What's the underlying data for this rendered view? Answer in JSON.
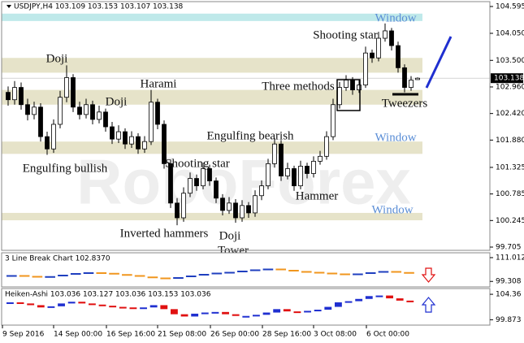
{
  "chart_data": {
    "type": "candlestick",
    "header": "USDJPY,H4 103.109 103.153 103.107 103.138",
    "watermark": "RoboForex",
    "ylim": [
      99.705,
      104.595
    ],
    "yticks": [
      104.595,
      {
        "value": 104.05,
        "label": "104.050"
      },
      {
        "value": 103.5,
        "label": "103.500"
      },
      {
        "value": 102.96,
        "label": "102.960"
      },
      {
        "value": 102.42,
        "label": "102.420"
      },
      {
        "value": 101.88,
        "label": "101.880"
      },
      101.325,
      100.785,
      100.245,
      99.705
    ],
    "current_price": 103.138,
    "open": [
      102.85,
      102.7,
      102.95,
      102.6,
      102.4,
      102.55,
      101.95,
      101.7,
      102.2,
      102.75,
      103.15,
      102.55,
      102.4,
      102.6,
      102.3,
      102.45,
      102.15,
      101.9,
      102.05,
      101.8,
      101.95,
      101.7,
      101.85,
      102.65,
      102.2,
      101.4,
      100.6,
      100.3,
      100.8,
      101.1,
      100.95,
      101.3,
      101.05,
      100.7,
      100.45,
      100.6,
      100.3,
      100.55,
      100.4,
      100.75,
      100.95,
      101.4,
      101.8,
      101.15,
      101.3,
      100.95,
      101.35,
      101.2,
      101.45,
      101.55,
      101.95,
      102.6,
      102.95,
      103.1,
      102.9,
      103.0,
      103.65,
      103.55,
      103.95,
      104.1,
      103.8,
      103.35,
      102.95,
      103.109
    ],
    "high": [
      102.97,
      103.08,
      103.05,
      102.72,
      102.66,
      102.63,
      102.05,
      102.3,
      102.88,
      103.4,
      103.22,
      102.66,
      102.72,
      102.68,
      102.58,
      102.52,
      102.25,
      102.18,
      102.12,
      102.06,
      102.02,
      101.96,
      102.9,
      102.72,
      102.28,
      101.48,
      100.7,
      100.92,
      101.22,
      101.18,
      101.42,
      101.38,
      101.12,
      100.78,
      100.72,
      100.68,
      100.66,
      100.62,
      100.86,
      101.06,
      101.5,
      101.92,
      101.88,
      101.42,
      101.36,
      101.46,
      101.42,
      101.55,
      101.66,
      102.06,
      102.72,
      103.06,
      103.2,
      103.16,
      103.1,
      103.78,
      103.72,
      104.08,
      104.25,
      104.16,
      103.88,
      103.42,
      103.18,
      103.153
    ],
    "low": [
      102.58,
      102.6,
      102.5,
      102.28,
      102.3,
      101.85,
      101.58,
      101.62,
      102.12,
      102.65,
      102.45,
      102.3,
      102.32,
      102.2,
      102.22,
      102.05,
      101.8,
      101.82,
      101.7,
      101.72,
      101.6,
      101.62,
      101.78,
      102.1,
      101.3,
      100.5,
      100.15,
      100.22,
      100.72,
      100.85,
      100.88,
      100.95,
      100.6,
      100.35,
      100.38,
      100.2,
      100.22,
      100.3,
      100.32,
      100.66,
      100.88,
      101.32,
      101.05,
      101.08,
      100.85,
      100.88,
      101.1,
      101.12,
      101.38,
      101.48,
      101.88,
      102.52,
      102.88,
      102.8,
      102.84,
      102.94,
      103.45,
      103.48,
      103.88,
      103.7,
      103.25,
      102.85,
      102.88,
      103.107
    ],
    "close": [
      102.7,
      102.95,
      102.6,
      102.4,
      102.55,
      101.95,
      101.7,
      102.2,
      102.75,
      103.15,
      102.55,
      102.4,
      102.6,
      102.3,
      102.45,
      102.15,
      101.9,
      102.05,
      101.8,
      101.95,
      101.7,
      101.85,
      102.65,
      102.2,
      101.4,
      100.6,
      100.3,
      100.8,
      101.1,
      100.95,
      101.3,
      101.05,
      100.7,
      100.45,
      100.6,
      100.3,
      100.55,
      100.4,
      100.75,
      100.95,
      101.4,
      101.8,
      101.15,
      101.3,
      100.95,
      101.35,
      101.2,
      101.45,
      101.55,
      101.95,
      102.6,
      102.95,
      103.1,
      102.9,
      103.0,
      103.65,
      103.55,
      103.95,
      104.1,
      103.8,
      103.35,
      102.95,
      103.1,
      103.138
    ],
    "zones": [
      {
        "from": 104.3,
        "to": 104.45,
        "color": "#bfe9ea"
      },
      {
        "from": 103.25,
        "to": 103.55,
        "color": "#e6e3c9"
      },
      {
        "from": 102.6,
        "to": 102.9,
        "color": "#e6e3c9"
      },
      {
        "from": 101.6,
        "to": 101.85,
        "color": "#e6e3c9"
      },
      {
        "from": 100.25,
        "to": 100.4,
        "color": "#e6e3c9"
      }
    ],
    "annotations": [
      "Doji",
      "Harami",
      "Doji",
      "Engulfing bullish",
      "Shooting star",
      "Inverted hammers",
      "Doji",
      "Tower",
      "Engulfing bearish",
      "Hammer",
      "Three methods",
      "Shooting star",
      "Tweezers",
      "Window",
      "Window",
      "Window"
    ],
    "x_labels": [
      "9 Sep 2016",
      "14 Sep 00:00",
      "16 Sep 16:00",
      "21 Sep 08:00",
      "26 Sep 00:00",
      "28 Sep 16:00",
      "3 Oct 08:00",
      "6 Oct 00:00"
    ],
    "line_break": {
      "label": "3 Line Break Chart 102.8370",
      "ylim": [
        98.2,
        111.8
      ],
      "yticks": [
        111.012,
        99.308
      ],
      "up_color": "#1f3fbf",
      "down_color": "#f0961e",
      "values": [
        102.0,
        101.6,
        101.2,
        101.5,
        102.2,
        103.0,
        103.4,
        103.1,
        102.5,
        102.0,
        101.3,
        100.8,
        100.6,
        101.0,
        101.8,
        102.6,
        103.2,
        103.6,
        104.2,
        104.8,
        105.2,
        104.6,
        104.0,
        103.6,
        103.2,
        102.8,
        102.4,
        102.8,
        103.4,
        104.0,
        103.5,
        102.837
      ]
    },
    "heiken_ashi": {
      "label": "Heiken-Ashi 103.036 103.127 103.036 103.153 103.036",
      "ylim": [
        99.5,
        104.8
      ],
      "yticks": [
        104.36,
        99.873
      ],
      "up_color": "#1f2fd0",
      "down_color": "#e01010",
      "values": [
        102.8,
        102.6,
        102.3,
        101.9,
        102.1,
        102.6,
        102.9,
        102.6,
        102.4,
        102.2,
        102.0,
        101.9,
        101.8,
        101.9,
        102.3,
        101.6,
        100.7,
        100.3,
        100.8,
        101.0,
        101.1,
        100.7,
        100.4,
        100.4,
        100.6,
        101.0,
        101.6,
        101.2,
        101.1,
        101.3,
        101.5,
        102.0,
        102.8,
        103.0,
        103.4,
        103.9,
        104.0,
        103.5,
        103.1,
        103.036
      ]
    }
  }
}
